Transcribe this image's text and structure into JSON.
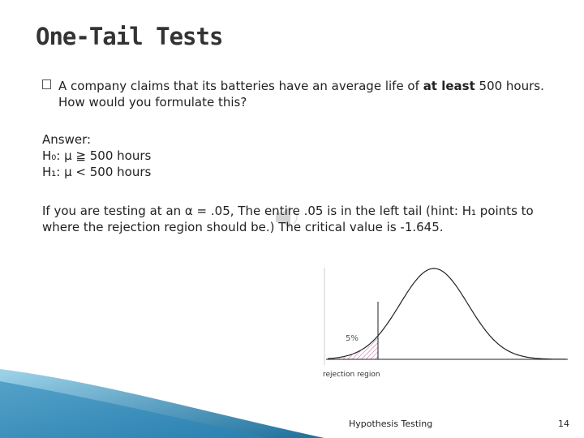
{
  "header": {
    "title": "One-Tail Tests"
  },
  "body": {
    "bullet": {
      "before": "A company claims that its batteries have an average life of",
      "emphasis": "at least",
      "after": "500 hours. How would you formulate this?"
    },
    "answer": {
      "label": "Answer:",
      "h0": "H₀: μ ≧ 500 hours",
      "h1": "H₁: μ < 500 hours"
    },
    "paragraph": "If you are testing at an α = .05, The entire .05 is in the left tail (hint: H₁ points to where the rejection region should be.) The critical value is -1.645."
  },
  "figure": {
    "percent_label": "5%",
    "region_label": "rejection region"
  },
  "footer": {
    "text": "Hypothesis Testing",
    "page": "14"
  }
}
